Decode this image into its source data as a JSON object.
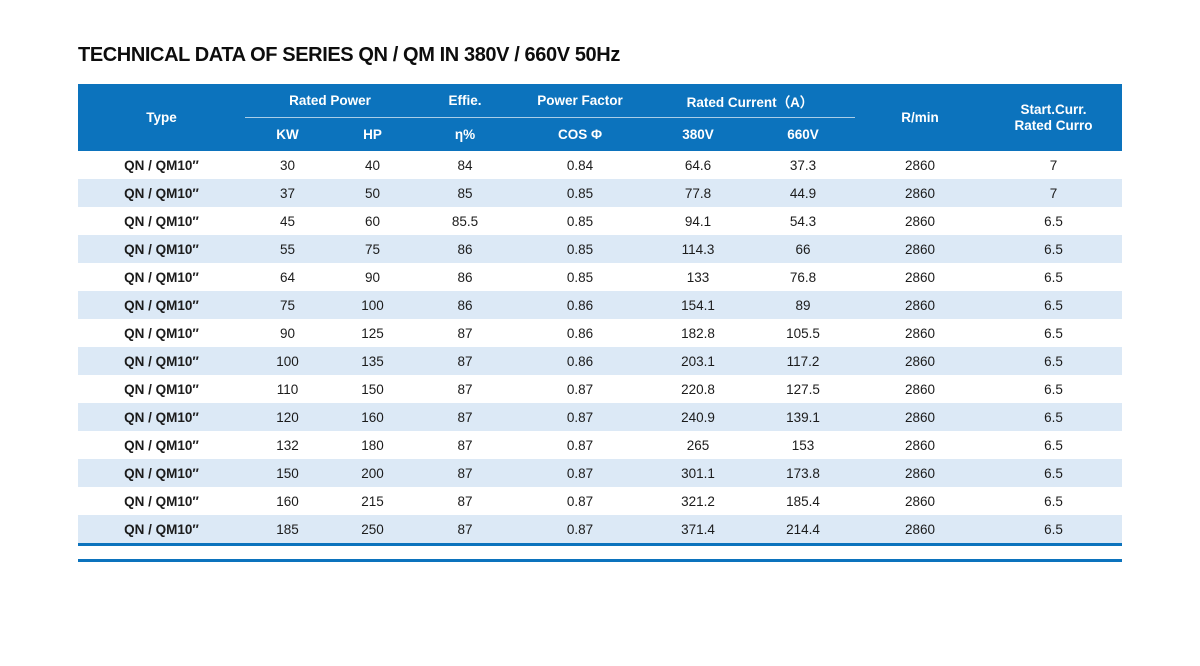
{
  "title": "TECHNICAL DATA OF SERIES QN / QM IN 380V / 660V 50Hz",
  "colors": {
    "header_bg": "#0c73bd",
    "stripe_bg": "#dce9f6",
    "accent_line": "#0c73bd"
  },
  "table": {
    "header": {
      "type": "Type",
      "rated_power": "Rated Power",
      "kw": "KW",
      "hp": "HP",
      "effie": "Effie.",
      "eta": "η%",
      "power_factor": "Power Factor",
      "cos_phi": "COS Φ",
      "rated_current": "Rated Current（A）",
      "v380": "380V",
      "v660": "660V",
      "rpm": "R/min",
      "start_curr_line1": "Start.Curr.",
      "start_curr_line2": "Rated Curro"
    },
    "rows": [
      [
        "QN / QM10″",
        "30",
        "40",
        "84",
        "0.84",
        "64.6",
        "37.3",
        "2860",
        "7"
      ],
      [
        "QN / QM10″",
        "37",
        "50",
        "85",
        "0.85",
        "77.8",
        "44.9",
        "2860",
        "7"
      ],
      [
        "QN / QM10″",
        "45",
        "60",
        "85.5",
        "0.85",
        "94.1",
        "54.3",
        "2860",
        "6.5"
      ],
      [
        "QN / QM10″",
        "55",
        "75",
        "86",
        "0.85",
        "114.3",
        "66",
        "2860",
        "6.5"
      ],
      [
        "QN / QM10″",
        "64",
        "90",
        "86",
        "0.85",
        "133",
        "76.8",
        "2860",
        "6.5"
      ],
      [
        "QN / QM10″",
        "75",
        "100",
        "86",
        "0.86",
        "154.1",
        "89",
        "2860",
        "6.5"
      ],
      [
        "QN / QM10″",
        "90",
        "125",
        "87",
        "0.86",
        "182.8",
        "105.5",
        "2860",
        "6.5"
      ],
      [
        "QN / QM10″",
        "100",
        "135",
        "87",
        "0.86",
        "203.1",
        "117.2",
        "2860",
        "6.5"
      ],
      [
        "QN / QM10″",
        "110",
        "150",
        "87",
        "0.87",
        "220.8",
        "127.5",
        "2860",
        "6.5"
      ],
      [
        "QN / QM10″",
        "120",
        "160",
        "87",
        "0.87",
        "240.9",
        "139.1",
        "2860",
        "6.5"
      ],
      [
        "QN / QM10″",
        "132",
        "180",
        "87",
        "0.87",
        "265",
        "153",
        "2860",
        "6.5"
      ],
      [
        "QN / QM10″",
        "150",
        "200",
        "87",
        "0.87",
        "301.1",
        "173.8",
        "2860",
        "6.5"
      ],
      [
        "QN / QM10″",
        "160",
        "215",
        "87",
        "0.87",
        "321.2",
        "185.4",
        "2860",
        "6.5"
      ],
      [
        "QN / QM10″",
        "185",
        "250",
        "87",
        "0.87",
        "371.4",
        "214.4",
        "2860",
        "6.5"
      ]
    ]
  }
}
